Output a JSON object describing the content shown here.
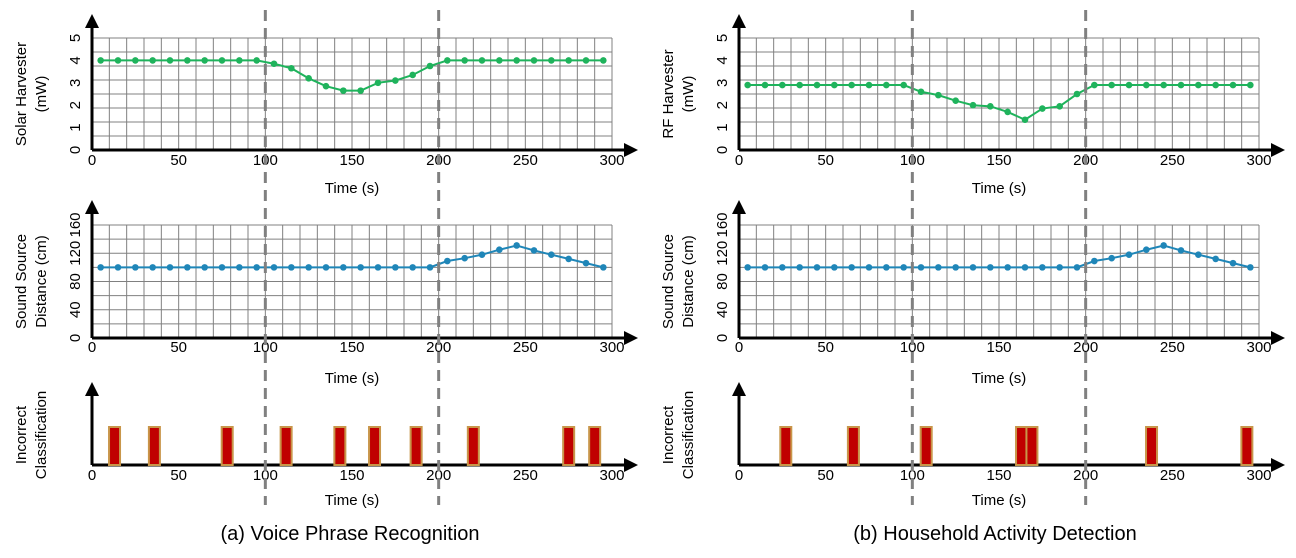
{
  "colors": {
    "harvester": "#1fb35c",
    "distance": "#1f86b8",
    "bar_fill": "#c00000",
    "bar_edge": "#c8964a",
    "grid": "#808080",
    "divider": "#808080"
  },
  "panels": [
    {
      "caption": "(a) Voice Phrase Recognition",
      "phase_boundaries": [
        100,
        200
      ],
      "charts": [
        {
          "type": "line",
          "ylabel_lines": [
            "Solar Harvester",
            "(mW)"
          ],
          "xlabel": "Time (s)",
          "xlim": [
            0,
            300
          ],
          "ylim": [
            0,
            5
          ],
          "xticks": [
            "0",
            "50",
            "100",
            "150",
            "200",
            "250",
            "300"
          ],
          "yticks": [
            "0",
            "1",
            "2",
            "3",
            "4",
            "5"
          ],
          "grid": true,
          "x": [
            5,
            15,
            25,
            35,
            45,
            55,
            65,
            75,
            85,
            95,
            105,
            115,
            125,
            135,
            145,
            155,
            165,
            175,
            185,
            195,
            205,
            215,
            225,
            235,
            245,
            255,
            265,
            275,
            285,
            295
          ],
          "y": [
            4.0,
            4.0,
            4.0,
            4.0,
            4.0,
            4.0,
            4.0,
            4.0,
            4.0,
            4.0,
            3.85,
            3.65,
            3.2,
            2.85,
            2.65,
            2.65,
            3.0,
            3.1,
            3.35,
            3.75,
            4.0,
            4.0,
            4.0,
            4.0,
            4.0,
            4.0,
            4.0,
            4.0,
            4.0,
            4.0
          ]
        },
        {
          "type": "line",
          "ylabel_lines": [
            "Sound Source",
            "Distance (cm)"
          ],
          "xlabel": "Time (s)",
          "xlim": [
            0,
            300
          ],
          "ylim": [
            0,
            160
          ],
          "xticks": [
            "0",
            "50",
            "100",
            "150",
            "200",
            "250",
            "300"
          ],
          "yticks": [
            "0",
            "40",
            "80",
            "120",
            "160"
          ],
          "grid": true,
          "x": [
            5,
            15,
            25,
            35,
            45,
            55,
            65,
            75,
            85,
            95,
            105,
            115,
            125,
            135,
            145,
            155,
            165,
            175,
            185,
            195,
            205,
            215,
            225,
            235,
            245,
            255,
            265,
            275,
            285,
            295
          ],
          "y": [
            100,
            100,
            100,
            100,
            100,
            100,
            100,
            100,
            100,
            100,
            100,
            100,
            100,
            100,
            100,
            100,
            100,
            100,
            100,
            100,
            109,
            113,
            118,
            125,
            131,
            124,
            118,
            112,
            106,
            100
          ]
        },
        {
          "type": "bar",
          "ylabel_lines": [
            "Incorrect",
            "Classification"
          ],
          "xlabel": "Time (s)",
          "xlim": [
            0,
            300
          ],
          "xticks": [
            "0",
            "50",
            "100",
            "150",
            "200",
            "250",
            "300"
          ],
          "x": [
            13,
            36,
            78,
            112,
            143,
            163,
            187,
            220,
            275,
            290
          ]
        }
      ]
    },
    {
      "caption": "(b) Household Activity Detection",
      "phase_boundaries": [
        100,
        200
      ],
      "charts": [
        {
          "type": "line",
          "ylabel_lines": [
            "RF Harvester",
            "(mW)"
          ],
          "xlabel": "Time (s)",
          "xlim": [
            0,
            300
          ],
          "ylim": [
            0,
            5
          ],
          "xticks": [
            "0",
            "50",
            "100",
            "150",
            "200",
            "250",
            "300"
          ],
          "yticks": [
            "0",
            "1",
            "2",
            "3",
            "4",
            "5"
          ],
          "grid": true,
          "x": [
            5,
            15,
            25,
            35,
            45,
            55,
            65,
            75,
            85,
            95,
            105,
            115,
            125,
            135,
            145,
            155,
            165,
            175,
            185,
            195,
            205,
            215,
            225,
            235,
            245,
            255,
            265,
            275,
            285,
            295
          ],
          "y": [
            2.9,
            2.9,
            2.9,
            2.9,
            2.9,
            2.9,
            2.9,
            2.9,
            2.9,
            2.9,
            2.6,
            2.45,
            2.2,
            2.0,
            1.95,
            1.7,
            1.35,
            1.85,
            1.95,
            2.5,
            2.9,
            2.9,
            2.9,
            2.9,
            2.9,
            2.9,
            2.9,
            2.9,
            2.9,
            2.9
          ]
        },
        {
          "type": "line",
          "ylabel_lines": [
            "Sound Source",
            "Distance (cm)"
          ],
          "xlabel": "Time (s)",
          "xlim": [
            0,
            300
          ],
          "ylim": [
            0,
            160
          ],
          "xticks": [
            "0",
            "50",
            "100",
            "150",
            "200",
            "250",
            "300"
          ],
          "yticks": [
            "0",
            "40",
            "80",
            "120",
            "160"
          ],
          "grid": true,
          "x": [
            5,
            15,
            25,
            35,
            45,
            55,
            65,
            75,
            85,
            95,
            105,
            115,
            125,
            135,
            145,
            155,
            165,
            175,
            185,
            195,
            205,
            215,
            225,
            235,
            245,
            255,
            265,
            275,
            285,
            295
          ],
          "y": [
            100,
            100,
            100,
            100,
            100,
            100,
            100,
            100,
            100,
            100,
            100,
            100,
            100,
            100,
            100,
            100,
            100,
            100,
            100,
            100,
            109,
            113,
            118,
            125,
            131,
            124,
            118,
            112,
            106,
            100
          ]
        },
        {
          "type": "bar",
          "ylabel_lines": [
            "Incorrect",
            "Classification"
          ],
          "xlabel": "Time (s)",
          "xlim": [
            0,
            300
          ],
          "xticks": [
            "0",
            "50",
            "100",
            "150",
            "200",
            "250",
            "300"
          ],
          "x": [
            27,
            66,
            108,
            163,
            169,
            238,
            293
          ]
        }
      ]
    }
  ],
  "chart_data": [
    {
      "type": "line",
      "title": "",
      "xlabel": "Time (s)",
      "ylabel": "Solar Harvester (mW)",
      "xlim": [
        0,
        300
      ],
      "ylim": [
        0,
        5
      ],
      "grid": true,
      "x": [
        5,
        15,
        25,
        35,
        45,
        55,
        65,
        75,
        85,
        95,
        105,
        115,
        125,
        135,
        145,
        155,
        165,
        175,
        185,
        195,
        205,
        215,
        225,
        235,
        245,
        255,
        265,
        275,
        285,
        295
      ],
      "y": [
        4.0,
        4.0,
        4.0,
        4.0,
        4.0,
        4.0,
        4.0,
        4.0,
        4.0,
        4.0,
        3.85,
        3.65,
        3.2,
        2.85,
        2.65,
        2.65,
        3.0,
        3.1,
        3.35,
        3.75,
        4.0,
        4.0,
        4.0,
        4.0,
        4.0,
        4.0,
        4.0,
        4.0,
        4.0,
        4.0
      ]
    },
    {
      "type": "line",
      "title": "",
      "xlabel": "Time (s)",
      "ylabel": "Sound Source Distance (cm)",
      "xlim": [
        0,
        300
      ],
      "ylim": [
        0,
        160
      ],
      "grid": true,
      "x": [
        5,
        15,
        25,
        35,
        45,
        55,
        65,
        75,
        85,
        95,
        105,
        115,
        125,
        135,
        145,
        155,
        165,
        175,
        185,
        195,
        205,
        215,
        225,
        235,
        245,
        255,
        265,
        275,
        285,
        295
      ],
      "y": [
        100,
        100,
        100,
        100,
        100,
        100,
        100,
        100,
        100,
        100,
        100,
        100,
        100,
        100,
        100,
        100,
        100,
        100,
        100,
        100,
        109,
        113,
        118,
        125,
        131,
        124,
        118,
        112,
        106,
        100
      ]
    },
    {
      "type": "bar",
      "title": "",
      "xlabel": "Time (s)",
      "ylabel": "Incorrect Classification",
      "xlim": [
        0,
        300
      ],
      "x": [
        13,
        36,
        78,
        112,
        143,
        163,
        187,
        220,
        275,
        290
      ]
    },
    {
      "type": "line",
      "title": "",
      "xlabel": "Time (s)",
      "ylabel": "RF Harvester (mW)",
      "xlim": [
        0,
        300
      ],
      "ylim": [
        0,
        5
      ],
      "grid": true,
      "x": [
        5,
        15,
        25,
        35,
        45,
        55,
        65,
        75,
        85,
        95,
        105,
        115,
        125,
        135,
        145,
        155,
        165,
        175,
        185,
        195,
        205,
        215,
        225,
        235,
        245,
        255,
        265,
        275,
        285,
        295
      ],
      "y": [
        2.9,
        2.9,
        2.9,
        2.9,
        2.9,
        2.9,
        2.9,
        2.9,
        2.9,
        2.9,
        2.6,
        2.45,
        2.2,
        2.0,
        1.95,
        1.7,
        1.35,
        1.85,
        1.95,
        2.5,
        2.9,
        2.9,
        2.9,
        2.9,
        2.9,
        2.9,
        2.9,
        2.9,
        2.9,
        2.9
      ]
    },
    {
      "type": "line",
      "title": "",
      "xlabel": "Time (s)",
      "ylabel": "Sound Source Distance (cm)",
      "xlim": [
        0,
        300
      ],
      "ylim": [
        0,
        160
      ],
      "grid": true,
      "x": [
        5,
        15,
        25,
        35,
        45,
        55,
        65,
        75,
        85,
        95,
        105,
        115,
        125,
        135,
        145,
        155,
        165,
        175,
        185,
        195,
        205,
        215,
        225,
        235,
        245,
        255,
        265,
        275,
        285,
        295
      ],
      "y": [
        100,
        100,
        100,
        100,
        100,
        100,
        100,
        100,
        100,
        100,
        100,
        100,
        100,
        100,
        100,
        100,
        100,
        100,
        100,
        100,
        109,
        113,
        118,
        125,
        131,
        124,
        118,
        112,
        106,
        100
      ]
    },
    {
      "type": "bar",
      "title": "",
      "xlabel": "Time (s)",
      "ylabel": "Incorrect Classification",
      "xlim": [
        0,
        300
      ],
      "x": [
        27,
        66,
        108,
        163,
        169,
        238,
        293
      ]
    }
  ]
}
